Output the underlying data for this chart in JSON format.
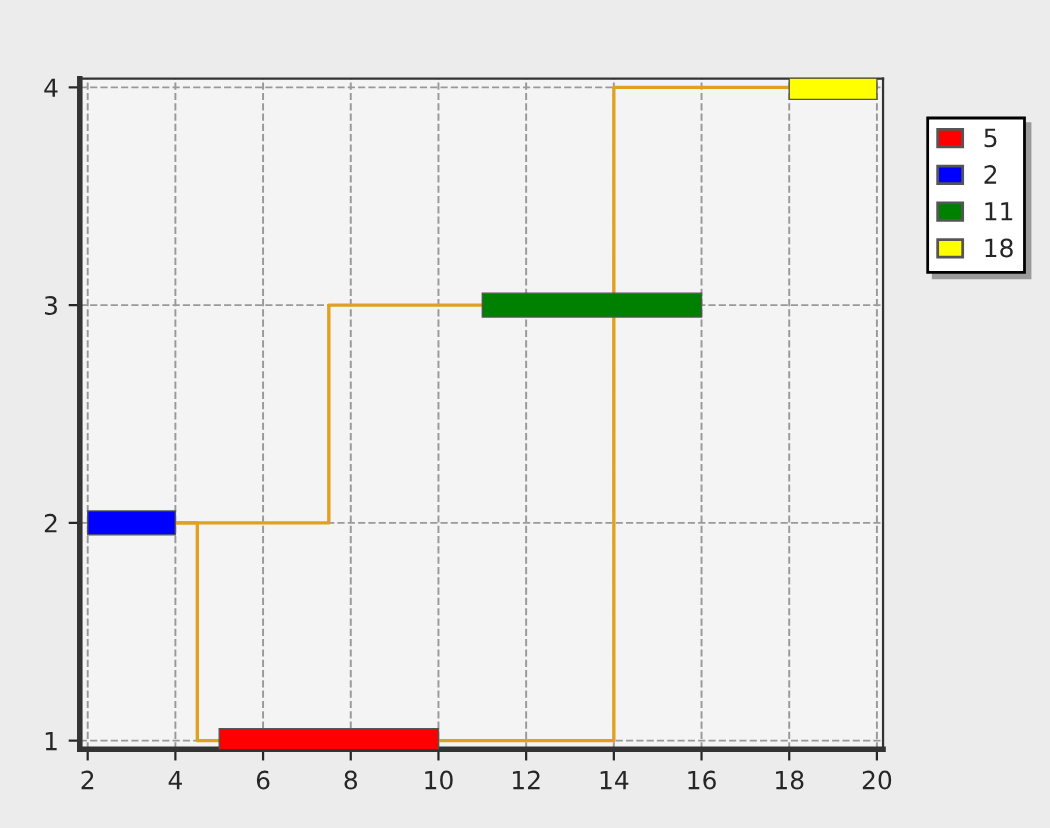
{
  "chart_data": {
    "type": "bar",
    "orientation": "horizontal",
    "series": [
      {
        "name": "5",
        "color": "#ff0000",
        "x": [
          1
        ],
        "base": [
          5
        ],
        "values": [
          5
        ]
      },
      {
        "name": "2",
        "color": "#0000ff",
        "x": [
          2
        ],
        "base": [
          2
        ],
        "values": [
          2
        ]
      },
      {
        "name": "11",
        "color": "#008000",
        "x": [
          3
        ],
        "base": [
          11
        ],
        "values": [
          5
        ]
      },
      {
        "name": "18",
        "color": "#ffff00",
        "x": [
          4
        ],
        "base": [
          18
        ],
        "values": [
          2
        ]
      },
      {
        "type": "line",
        "color": "#e0a020",
        "x": [
          2,
          2,
          3,
          3
        ],
        "values": [
          4,
          7.5,
          7.5,
          11
        ]
      },
      {
        "type": "line",
        "color": "#e0a020",
        "x": [
          2,
          2,
          1,
          1
        ],
        "values": [
          4,
          4.5,
          4.5,
          5
        ]
      },
      {
        "type": "line",
        "color": "#e0a020",
        "x": [
          1,
          1,
          4,
          4
        ],
        "values": [
          10,
          14,
          14,
          18
        ]
      }
    ],
    "xlim": [
      1.82,
      20.14
    ],
    "xticks": [
      2,
      4,
      6,
      8,
      10,
      12,
      14,
      16,
      18,
      20
    ],
    "ylim": [
      0.96,
      4.04
    ],
    "yticks": [
      1,
      2,
      3,
      4
    ],
    "grid": true,
    "legend": "top right",
    "line_style": "solid"
  }
}
